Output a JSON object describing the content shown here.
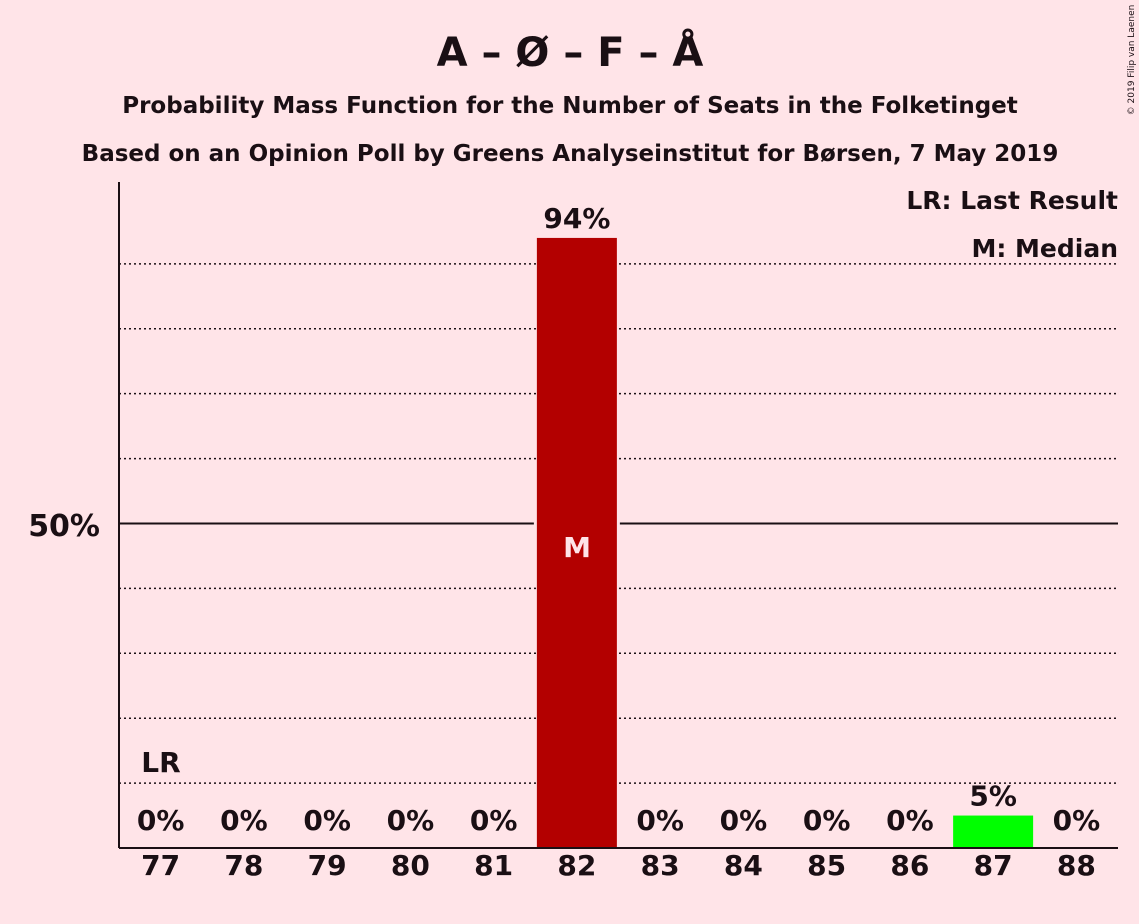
{
  "chart_data": {
    "type": "bar",
    "title": "A – Ø – F – Å",
    "subtitle_1": "Probability Mass Function for the Number of Seats in the Folketinget",
    "subtitle_2": "Based on an Opinion Poll by Greens Analyseinstitut for Børsen, 7 May 2019",
    "copyright": "© 2019 Filip van Laenen",
    "legend": [
      "LR: Last Result",
      "M: Median"
    ],
    "legend_position": "top-right",
    "categories": [
      "77",
      "78",
      "79",
      "80",
      "81",
      "82",
      "83",
      "84",
      "85",
      "86",
      "87",
      "88"
    ],
    "values": [
      0,
      0,
      0,
      0,
      0,
      94,
      0,
      0,
      0,
      0,
      5,
      0
    ],
    "value_labels": [
      "0%",
      "0%",
      "0%",
      "0%",
      "0%",
      "94%",
      "0%",
      "0%",
      "0%",
      "0%",
      "5%",
      "0%"
    ],
    "bar_colors": [
      "#B30000",
      "#B30000",
      "#B30000",
      "#B30000",
      "#B30000",
      "#B30000",
      "#B30000",
      "#B30000",
      "#B30000",
      "#B30000",
      "#00FF00",
      "#B30000"
    ],
    "last_result_label": "LR",
    "last_result_category": "77",
    "median_label": "M",
    "median_category": "82",
    "y_tick_label": "50%",
    "y_tick_value": 50,
    "ylim": [
      0,
      102
    ],
    "gridlines": [
      10,
      20,
      30,
      40,
      60,
      70,
      80,
      90
    ],
    "grid": true
  }
}
